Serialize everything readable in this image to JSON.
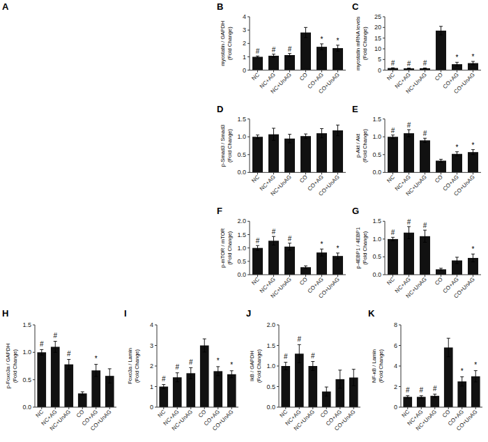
{
  "chart_data": [
    {
      "type": "blot",
      "title": "A"
    },
    {
      "type": "bar",
      "title": "B",
      "ylabel": "myostatin / GAPDH\n(Fold Change)",
      "categories": [
        "NC",
        "NC+AG",
        "NC+UnAG",
        "CO",
        "CO+AG",
        "CO+UnAG"
      ],
      "values": [
        1.0,
        1.08,
        1.13,
        2.82,
        1.75,
        1.65
      ],
      "errors": [
        0.06,
        0.12,
        0.12,
        0.38,
        0.22,
        0.22
      ],
      "annotations": [
        "#",
        "#",
        "#",
        null,
        "*",
        "*"
      ],
      "color": "#111111",
      "ylim": [
        0,
        4
      ],
      "yticks": [
        0,
        1,
        2,
        3,
        4
      ]
    },
    {
      "type": "bar",
      "title": "C",
      "ylabel": "myostatin mRNA levels\n(Fold Change)",
      "categories": [
        "NC",
        "NC+AG",
        "NC+UnAG",
        "CO",
        "CO+AG",
        "CO+UnAG"
      ],
      "values": [
        1.0,
        0.85,
        0.9,
        18.5,
        2.8,
        3.3
      ],
      "errors": [
        0.12,
        0.15,
        0.12,
        2.0,
        0.9,
        0.8
      ],
      "annotations": [
        "#",
        "#",
        "#",
        null,
        "*",
        "*"
      ],
      "color": "#111111",
      "ylim": [
        0,
        25
      ],
      "yticks": [
        0,
        5,
        10,
        15,
        20,
        25
      ]
    },
    {
      "type": "bar",
      "title": "D",
      "ylabel": "p-Smad3 / Smad3\n(Fold Change)",
      "categories": [
        "NC",
        "NC+AG",
        "NC+UnAG",
        "CO",
        "CO+AG",
        "CO+UnAG"
      ],
      "values": [
        1.0,
        1.07,
        0.95,
        1.02,
        1.1,
        1.18
      ],
      "errors": [
        0.05,
        0.17,
        0.12,
        0.06,
        0.13,
        0.15
      ],
      "color": "#111111",
      "ylim": [
        0.0,
        1.5
      ],
      "yticks": [
        {
          "value": 0.0,
          "label": "0.0"
        },
        0.5,
        {
          "value": 1.0,
          "label": "1.0"
        },
        1.5
      ]
    },
    {
      "type": "bar",
      "title": "E",
      "ylabel": "p-Akt / Akt\n(Fold Change)",
      "categories": [
        "NC",
        "NC+AG",
        "NC+UnAG",
        "CO",
        "CO+AG",
        "CO+UnAG"
      ],
      "values": [
        1.0,
        1.1,
        0.9,
        0.33,
        0.52,
        0.57
      ],
      "errors": [
        0.05,
        0.1,
        0.06,
        0.04,
        0.06,
        0.07
      ],
      "annotations": [
        "#",
        "#",
        "#",
        null,
        "*",
        "*"
      ],
      "color": "#111111",
      "ylim": [
        0.0,
        1.5
      ],
      "yticks": [
        {
          "value": 0.0,
          "label": "0.0"
        },
        0.5,
        {
          "value": 1.0,
          "label": "1.0"
        },
        1.5
      ]
    },
    {
      "type": "bar",
      "title": "F",
      "ylabel": "p-mTOR / mTOR\n(Fold Change)",
      "categories": [
        "NC",
        "NC+AG",
        "NC+UnAG",
        "CO",
        "CO+AG",
        "CO+UnAG"
      ],
      "values": [
        1.0,
        1.27,
        1.05,
        0.28,
        0.83,
        0.7
      ],
      "errors": [
        0.09,
        0.16,
        0.13,
        0.05,
        0.13,
        0.11
      ],
      "annotations": [
        "#",
        "#",
        "#",
        null,
        "*",
        "*"
      ],
      "color": "#111111",
      "ylim": [
        0.0,
        2.0
      ],
      "yticks": [
        {
          "value": 0.0,
          "label": "0.0"
        },
        0.5,
        {
          "value": 1.0,
          "label": "1.0"
        },
        1.5,
        {
          "value": 2.0,
          "label": "2.0"
        }
      ]
    },
    {
      "type": "bar",
      "title": "G",
      "ylabel": "p-4EBP1 / 4EBP1\n(Fold Change)",
      "categories": [
        "NC",
        "NC+AG",
        "NC+UnAG",
        "CO",
        "CO+AG",
        "CO+UnAG"
      ],
      "values": [
        1.0,
        1.18,
        1.08,
        0.15,
        0.4,
        0.47
      ],
      "errors": [
        0.05,
        0.17,
        0.17,
        0.03,
        0.09,
        0.11
      ],
      "annotations": [
        "#",
        "#",
        "#",
        null,
        null,
        "*"
      ],
      "color": "#111111",
      "ylim": [
        0.0,
        1.5
      ],
      "yticks": [
        {
          "value": 0.0,
          "label": "0.0"
        },
        0.5,
        {
          "value": 1.0,
          "label": "1.0"
        },
        1.5
      ]
    },
    {
      "type": "bar",
      "title": "H",
      "ylabel": "p-Foxo3a / GAPDH\n(Fold Change)",
      "categories": [
        "NC",
        "NC+AG",
        "NC+UnAG",
        "CO",
        "CO+AG",
        "CO+UnAG"
      ],
      "values": [
        1.0,
        1.1,
        0.78,
        0.25,
        0.67,
        0.57
      ],
      "errors": [
        0.05,
        0.1,
        0.09,
        0.03,
        0.11,
        0.13
      ],
      "annotations": [
        "#",
        "#",
        "#",
        null,
        "*",
        null
      ],
      "color": "#111111",
      "ylim": [
        0.0,
        1.5
      ],
      "yticks": [
        {
          "value": 0.0,
          "label": "0.0"
        },
        0.5,
        {
          "value": 1.0,
          "label": "1.0"
        },
        1.5
      ]
    },
    {
      "type": "bar",
      "title": "I",
      "ylabel": "Foxo3a / Lamin\n(Fold Change)",
      "categories": [
        "NC",
        "NC+AG",
        "NC+UnAG",
        "CO",
        "CO+AG",
        "CO+UnAG"
      ],
      "values": [
        1.0,
        1.45,
        1.65,
        3.0,
        1.75,
        1.6
      ],
      "errors": [
        0.1,
        0.22,
        0.27,
        0.32,
        0.22,
        0.17
      ],
      "annotations": [
        "#",
        "#",
        "#",
        null,
        "*",
        "*"
      ],
      "color": "#111111",
      "ylim": [
        0.0,
        4.0
      ],
      "yticks": [
        0,
        1,
        2,
        3,
        4
      ]
    },
    {
      "type": "bar",
      "title": "J",
      "ylabel": "IkB / GAPDH\n(Fold Change)",
      "categories": [
        "NC",
        "NC+AG",
        "NC+UnAG",
        "CO",
        "CO+AG",
        "CO+UnAG"
      ],
      "values": [
        1.0,
        1.3,
        1.0,
        0.38,
        0.68,
        0.72
      ],
      "errors": [
        0.09,
        0.22,
        0.11,
        0.11,
        0.22,
        0.2
      ],
      "annotations": [
        "#",
        "#",
        "#",
        null,
        null,
        null
      ],
      "color": "#111111",
      "ylim": [
        0.0,
        2.0
      ],
      "yticks": [
        {
          "value": 0.0,
          "label": "0.0"
        },
        0.5,
        {
          "value": 1.0,
          "label": "1.0"
        },
        1.5,
        {
          "value": 2.0,
          "label": "2.0"
        }
      ]
    },
    {
      "type": "bar",
      "title": "K",
      "ylabel": "NF-κB / Lamin\n(Fold Change)",
      "categories": [
        "NC",
        "NC+AG",
        "NC+UnAG",
        "CO",
        "CO+AG",
        "CO+UnAG"
      ],
      "values": [
        1.0,
        1.0,
        1.1,
        5.8,
        2.5,
        3.0
      ],
      "errors": [
        0.11,
        0.11,
        0.17,
        0.9,
        0.45,
        0.55
      ],
      "annotations": [
        "#",
        "#",
        "#",
        null,
        "*",
        "*"
      ],
      "color": "#111111",
      "ylim": [
        0.0,
        8.0
      ],
      "yticks": [
        0,
        2,
        4,
        6,
        8
      ]
    }
  ]
}
